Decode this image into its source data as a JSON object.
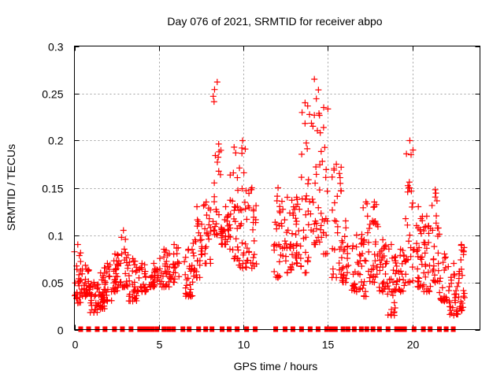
{
  "chart_data": {
    "type": "scatter",
    "title": "Day 076 of 2021, SRMTID for receiver abpo",
    "xlabel": "GPS time / hours",
    "ylabel": "SRMTID / TECUs",
    "xlim": [
      0,
      24
    ],
    "ylim": [
      0,
      0.3
    ],
    "xticks": [
      0,
      5,
      10,
      15,
      20
    ],
    "xtick_labels": [
      "0",
      "5",
      "10",
      "15",
      "20"
    ],
    "yticks": [
      0,
      0.05,
      0.1,
      0.15,
      0.2,
      0.25,
      0.3
    ],
    "ytick_labels": [
      "0",
      "0.05",
      "0.1",
      "0.15",
      "0.2",
      "0.25",
      "0.3"
    ],
    "grid": true,
    "legend": "none",
    "series": [
      {
        "name": "SRMTID",
        "marker": "plus",
        "color": "#ff0000",
        "passes": [
          {
            "x": [
              0.0,
              0.4
            ],
            "y": [
              0.028,
              0.09
            ]
          },
          {
            "x": [
              0.4,
              0.9
            ],
            "y": [
              0.035,
              0.068
            ]
          },
          {
            "x": [
              0.9,
              1.4
            ],
            "y": [
              0.018,
              0.05
            ]
          },
          {
            "x": [
              1.3,
              1.8
            ],
            "y": [
              0.022,
              0.06
            ]
          },
          {
            "x": [
              1.7,
              2.2
            ],
            "y": [
              0.03,
              0.07
            ]
          },
          {
            "x": [
              2.2,
              2.6
            ],
            "y": [
              0.04,
              0.08
            ]
          },
          {
            "x": [
              2.6,
              3.2
            ],
            "y": [
              0.045,
              0.105
            ]
          },
          {
            "x": [
              3.2,
              3.7
            ],
            "y": [
              0.03,
              0.075
            ]
          },
          {
            "x": [
              3.7,
              4.3
            ],
            "y": [
              0.04,
              0.07
            ]
          },
          {
            "x": [
              4.4,
              5.0
            ],
            "y": [
              0.045,
              0.07
            ]
          },
          {
            "x": [
              5.0,
              5.6
            ],
            "y": [
              0.045,
              0.085
            ]
          },
          {
            "x": [
              5.6,
              6.2
            ],
            "y": [
              0.05,
              0.09
            ]
          },
          {
            "x": [
              6.5,
              7.0
            ],
            "y": [
              0.035,
              0.085
            ]
          },
          {
            "x": [
              7.0,
              7.5
            ],
            "y": [
              0.055,
              0.13
            ]
          },
          {
            "x": [
              7.5,
              8.1
            ],
            "y": [
              0.07,
              0.135
            ]
          },
          {
            "x": [
              8.2,
              8.7
            ],
            "y": [
              0.1,
              0.262
            ]
          },
          {
            "x": [
              8.7,
              9.2
            ],
            "y": [
              0.09,
              0.13
            ]
          },
          {
            "x": [
              9.2,
              9.7
            ],
            "y": [
              0.075,
              0.193
            ]
          },
          {
            "x": [
              9.7,
              10.2
            ],
            "y": [
              0.065,
              0.2
            ]
          },
          {
            "x": [
              10.2,
              10.8
            ],
            "y": [
              0.065,
              0.15
            ]
          },
          {
            "x": [
              11.8,
              12.3
            ],
            "y": [
              0.055,
              0.15
            ]
          },
          {
            "x": [
              12.3,
              12.9
            ],
            "y": [
              0.06,
              0.14
            ]
          },
          {
            "x": [
              12.9,
              13.4
            ],
            "y": [
              0.07,
              0.14
            ]
          },
          {
            "x": [
              13.4,
              13.9
            ],
            "y": [
              0.06,
              0.24
            ]
          },
          {
            "x": [
              13.9,
              14.5
            ],
            "y": [
              0.09,
              0.265
            ]
          },
          {
            "x": [
              14.5,
              15.0
            ],
            "y": [
              0.08,
              0.235
            ]
          },
          {
            "x": [
              15.2,
              15.8
            ],
            "y": [
              0.055,
              0.175
            ]
          },
          {
            "x": [
              15.8,
              16.3
            ],
            "y": [
              0.05,
              0.115
            ]
          },
          {
            "x": [
              16.4,
              17.0
            ],
            "y": [
              0.04,
              0.1
            ]
          },
          {
            "x": [
              17.0,
              17.5
            ],
            "y": [
              0.035,
              0.135
            ]
          },
          {
            "x": [
              17.5,
              18.0
            ],
            "y": [
              0.05,
              0.135
            ]
          },
          {
            "x": [
              18.0,
              18.5
            ],
            "y": [
              0.04,
              0.095
            ]
          },
          {
            "x": [
              18.5,
              19.0
            ],
            "y": [
              0.015,
              0.09
            ]
          },
          {
            "x": [
              19.0,
              19.6
            ],
            "y": [
              0.04,
              0.085
            ]
          },
          {
            "x": [
              19.6,
              20.1
            ],
            "y": [
              0.05,
              0.2
            ]
          },
          {
            "x": [
              20.1,
              20.6
            ],
            "y": [
              0.045,
              0.13
            ]
          },
          {
            "x": [
              20.6,
              21.1
            ],
            "y": [
              0.04,
              0.12
            ]
          },
          {
            "x": [
              21.1,
              21.6
            ],
            "y": [
              0.05,
              0.148
            ]
          },
          {
            "x": [
              21.6,
              22.2
            ],
            "y": [
              0.03,
              0.08
            ]
          },
          {
            "x": [
              22.2,
              22.7
            ],
            "y": [
              0.015,
              0.07
            ]
          },
          {
            "x": [
              22.7,
              23.1
            ],
            "y": [
              0.02,
              0.09
            ]
          }
        ]
      },
      {
        "name": "zero-values",
        "marker": "square",
        "color": "#ff0000",
        "x": [
          0.37,
          0.84,
          1.35,
          1.81,
          2.37,
          2.84,
          3.35,
          3.86,
          4.09,
          4.33,
          4.6,
          4.88,
          5.3,
          5.58,
          5.86,
          6.42,
          6.79,
          7.35,
          7.77,
          8.14,
          8.74,
          9.16,
          9.63,
          10.19,
          10.7,
          11.91,
          12.47,
          12.93,
          13.44,
          13.95,
          14.42,
          14.93,
          15.21,
          15.44,
          15.9,
          16.19,
          16.56,
          16.98,
          17.3,
          17.67,
          18.05,
          18.56,
          19.07,
          19.3,
          19.53,
          20.1,
          20.65,
          21.05,
          21.6,
          22.0,
          22.42
        ]
      }
    ]
  }
}
